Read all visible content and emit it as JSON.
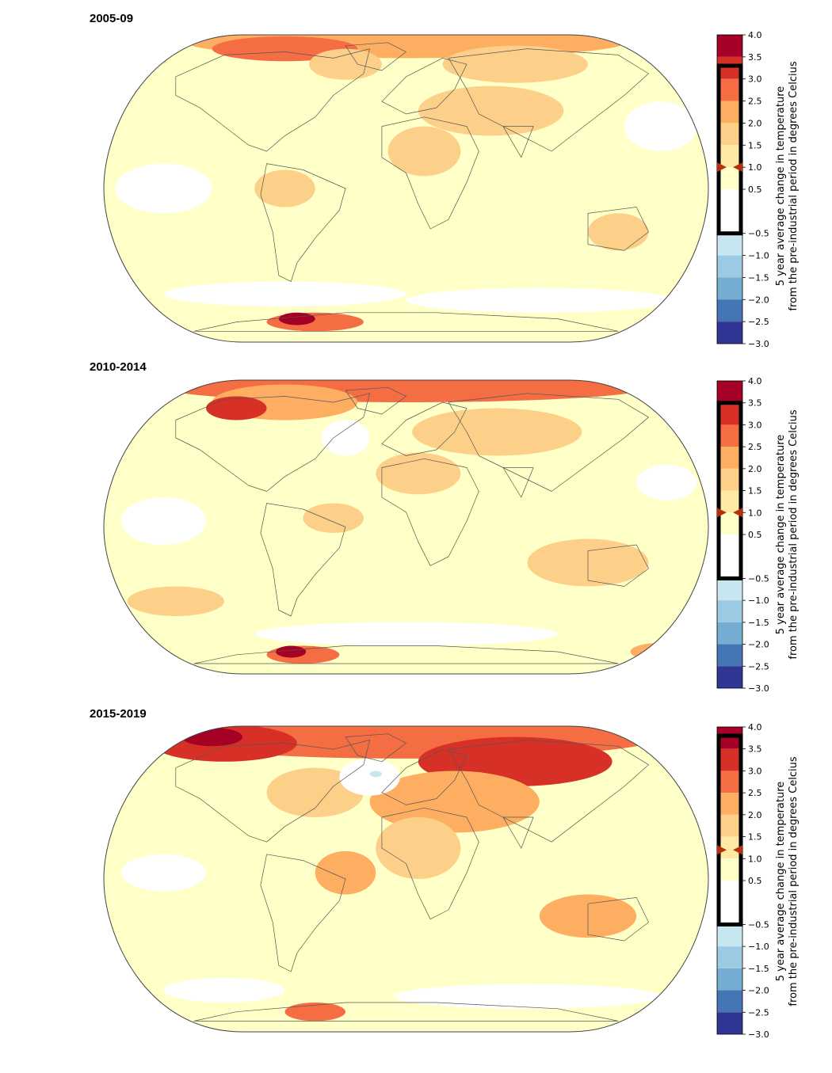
{
  "colorbar": {
    "title_line1": "5 year average change in temperature",
    "title_line2": "from the pre-industrial period in degrees Celcius",
    "tick_labels": [
      "4.0",
      "3.5",
      "3.0",
      "2.5",
      "2.0",
      "1.5",
      "1.0",
      "0.5",
      "−0.5",
      "−1.0",
      "−1.5",
      "−2.0",
      "−2.5",
      "−3.0"
    ],
    "tick_values": [
      4.0,
      3.5,
      3.0,
      2.5,
      2.0,
      1.5,
      1.0,
      0.5,
      -0.5,
      -1.0,
      -1.5,
      -2.0,
      -2.5,
      -3.0
    ],
    "colors": {
      "3.5_4.0": "#a50026",
      "3.0_3.5": "#d73027",
      "2.5_3.0": "#f46d43",
      "2.0_2.5": "#fdae61",
      "1.5_2.0": "#fdd08a",
      "1.0_1.5": "#fee9a5",
      "0.5_1.0": "#ffffc8",
      "-0.5_0.5": "#ffffff",
      "-1.0_-0.5": "#c6e6f0",
      "-1.5_-1.0": "#9ccae2",
      "-2.0_-1.5": "#74add1",
      "-2.5_-2.0": "#4575b4",
      "-3.0_-2.5": "#313695"
    },
    "marker_color": "#b8300a"
  },
  "panels": [
    {
      "title": "2005-09",
      "highlight_range": [
        -0.5,
        3.3
      ],
      "marker_value": 1.0
    },
    {
      "title": "2010-2014",
      "highlight_range": [
        -0.5,
        3.5
      ],
      "marker_value": 1.0
    },
    {
      "title": "2015-2019",
      "highlight_range": [
        -0.5,
        3.8
      ],
      "marker_value": 1.2
    }
  ]
}
